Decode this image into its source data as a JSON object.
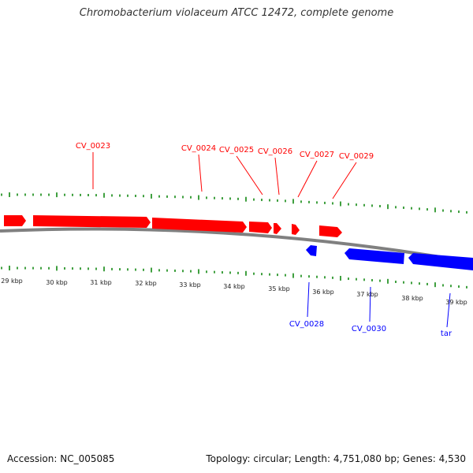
{
  "title": "Chromobacterium violaceum ATCC 12472, complete genome",
  "footer": {
    "accession": "Accession: NC_005085",
    "summary": "Topology: circular; Length: 4,751,080 bp; Genes: 4,530"
  },
  "colors": {
    "forward": "#ff0000",
    "reverse": "#0000ff",
    "ticks": "#008000",
    "backbone": "#808080"
  },
  "ruler_labels": [
    "29 kbp",
    "30 kbp",
    "31 kbp",
    "32 kbp",
    "33 kbp",
    "34 kbp",
    "35 kbp",
    "36 kbp",
    "37 kbp",
    "38 kbp",
    "39 kbp"
  ],
  "genes": {
    "forward_labels": [
      "CV_0023",
      "CV_0024",
      "CV_0025",
      "CV_0026",
      "CV_0027",
      "CV_0029"
    ],
    "reverse_labels": [
      "CV_0028",
      "CV_0030",
      "tar"
    ]
  }
}
